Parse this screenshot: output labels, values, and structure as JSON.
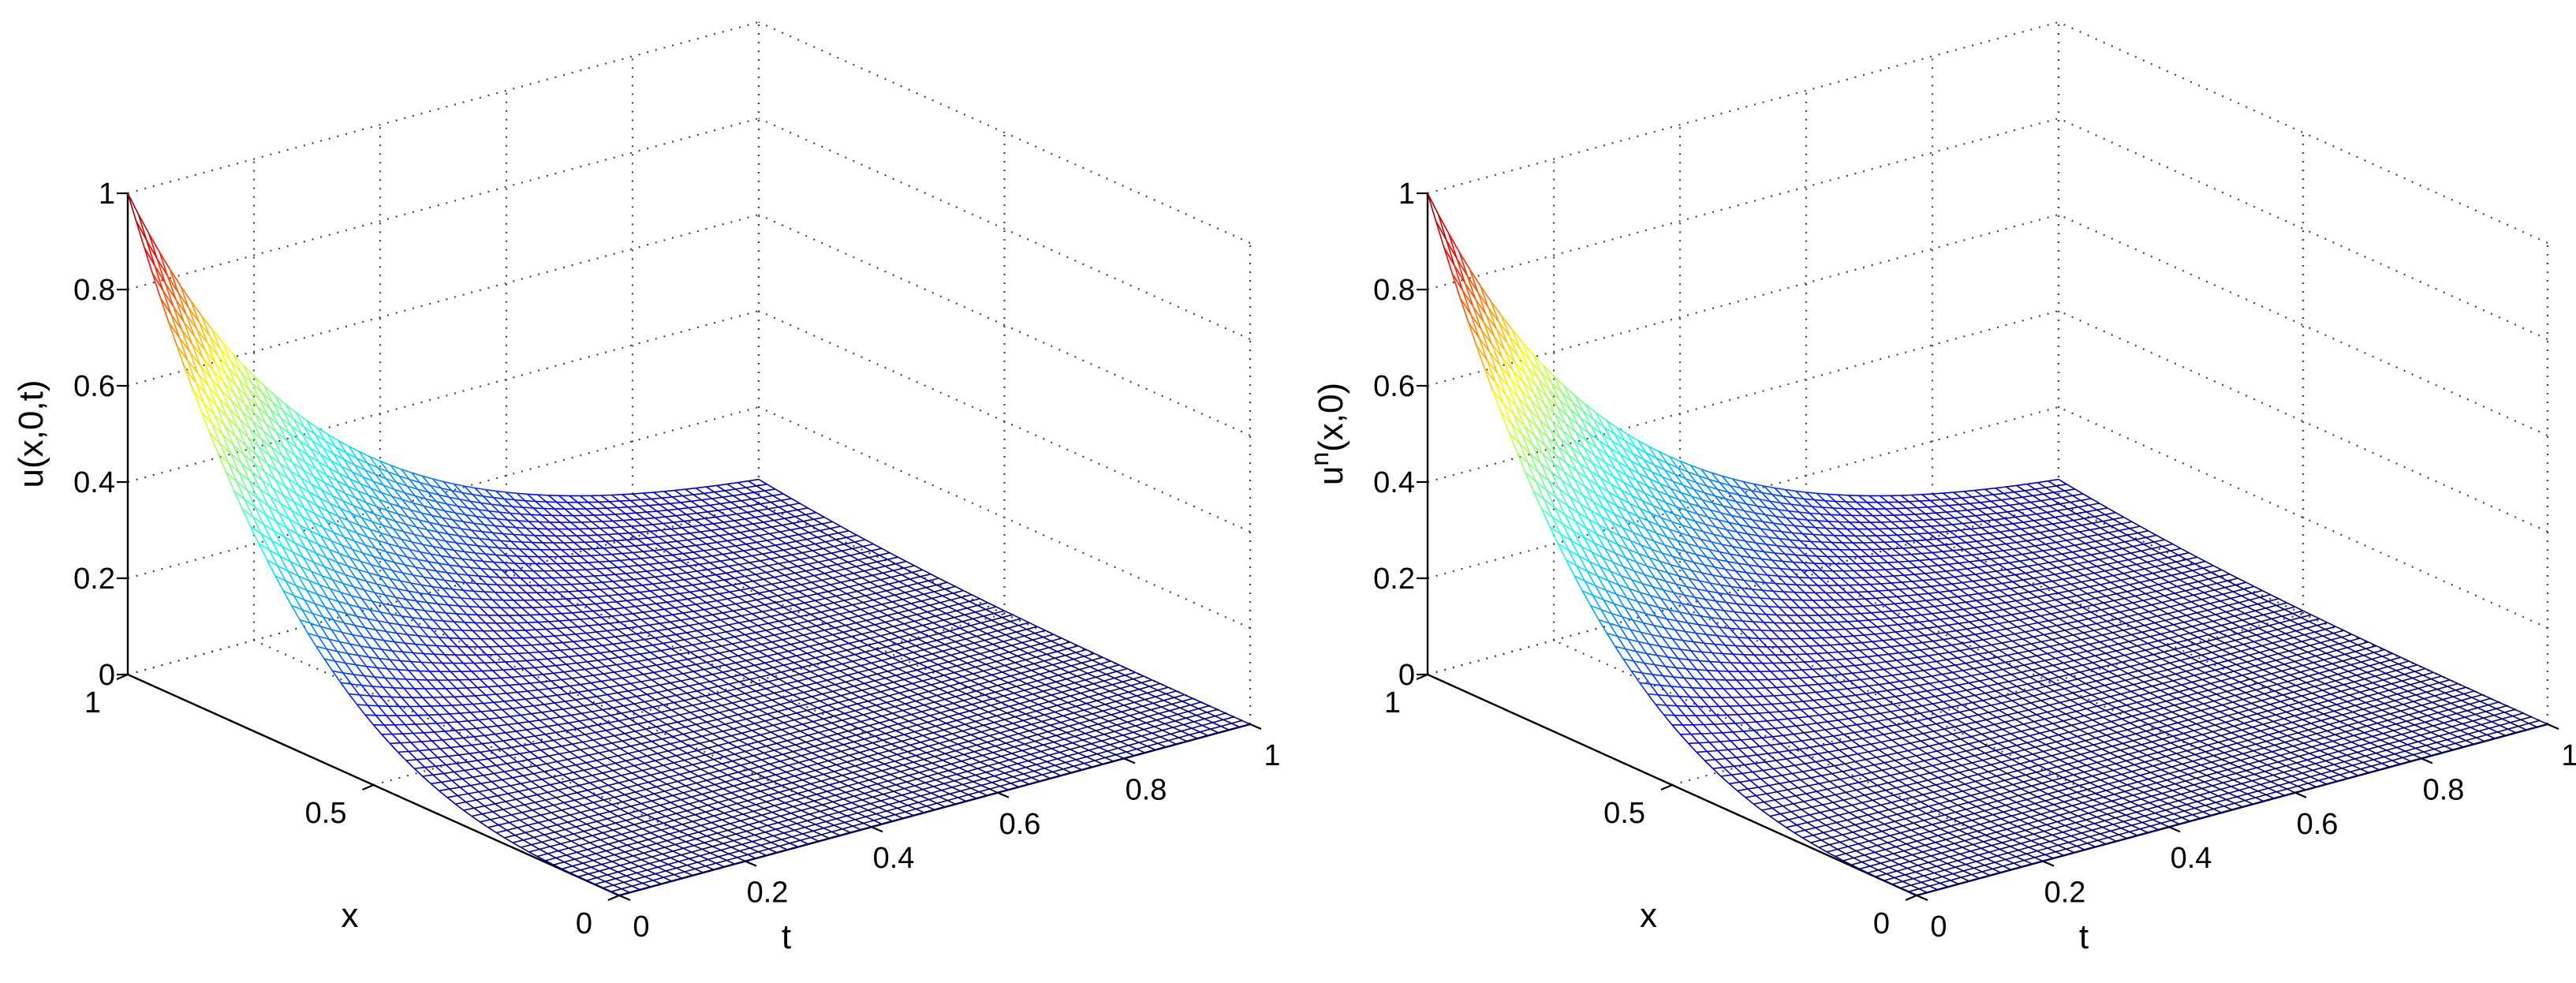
{
  "chart_data": [
    {
      "type": "surface",
      "zlabel": "u(x,0,t)",
      "zlabel_sup": "",
      "zlabel_rest": "",
      "xlabel": "t",
      "ylabel": "x",
      "x_axis": {
        "name": "t",
        "range": [
          0,
          1
        ],
        "ticks": [
          "0",
          "0.2",
          "0.4",
          "0.6",
          "0.8",
          "1"
        ]
      },
      "y_axis": {
        "name": "x",
        "range": [
          0,
          1
        ],
        "ticks": [
          "0",
          "0.5",
          "1"
        ]
      },
      "z_axis": {
        "name": "u",
        "range": [
          0,
          1
        ],
        "ticks": [
          "0",
          "0.2",
          "0.4",
          "0.6",
          "0.8",
          "1"
        ]
      },
      "grid": true,
      "colormap": "jet",
      "surface": {
        "description_formula": "u = x^3 * exp(-3 t)",
        "corner_values": {
          "x0_t0": 0,
          "x1_t0": 1,
          "x1_t1": 0.05,
          "x0_t1": 0
        },
        "mesh_lines": 60
      }
    },
    {
      "type": "surface",
      "zlabel": "",
      "zlabel_sup": "n",
      "zlabel_rest": "(x,0)",
      "zlabel_base": "u",
      "xlabel": "t",
      "ylabel": "x",
      "x_axis": {
        "name": "t",
        "range": [
          0,
          1
        ],
        "ticks": [
          "0",
          "0.2",
          "0.4",
          "0.6",
          "0.8",
          "1"
        ]
      },
      "y_axis": {
        "name": "x",
        "range": [
          0,
          1
        ],
        "ticks": [
          "0",
          "0.5",
          "1"
        ]
      },
      "z_axis": {
        "name": "u",
        "range": [
          0,
          1
        ],
        "ticks": [
          "0",
          "0.2",
          "0.4",
          "0.6",
          "0.8",
          "1"
        ]
      },
      "grid": true,
      "colormap": "jet",
      "surface": {
        "description_formula": "u = x^3 * exp(-3 t)",
        "corner_values": {
          "x0_t0": 0,
          "x1_t0": 1,
          "x1_t1": 0.05,
          "x0_t1": 0
        },
        "mesh_lines": 60
      }
    }
  ]
}
